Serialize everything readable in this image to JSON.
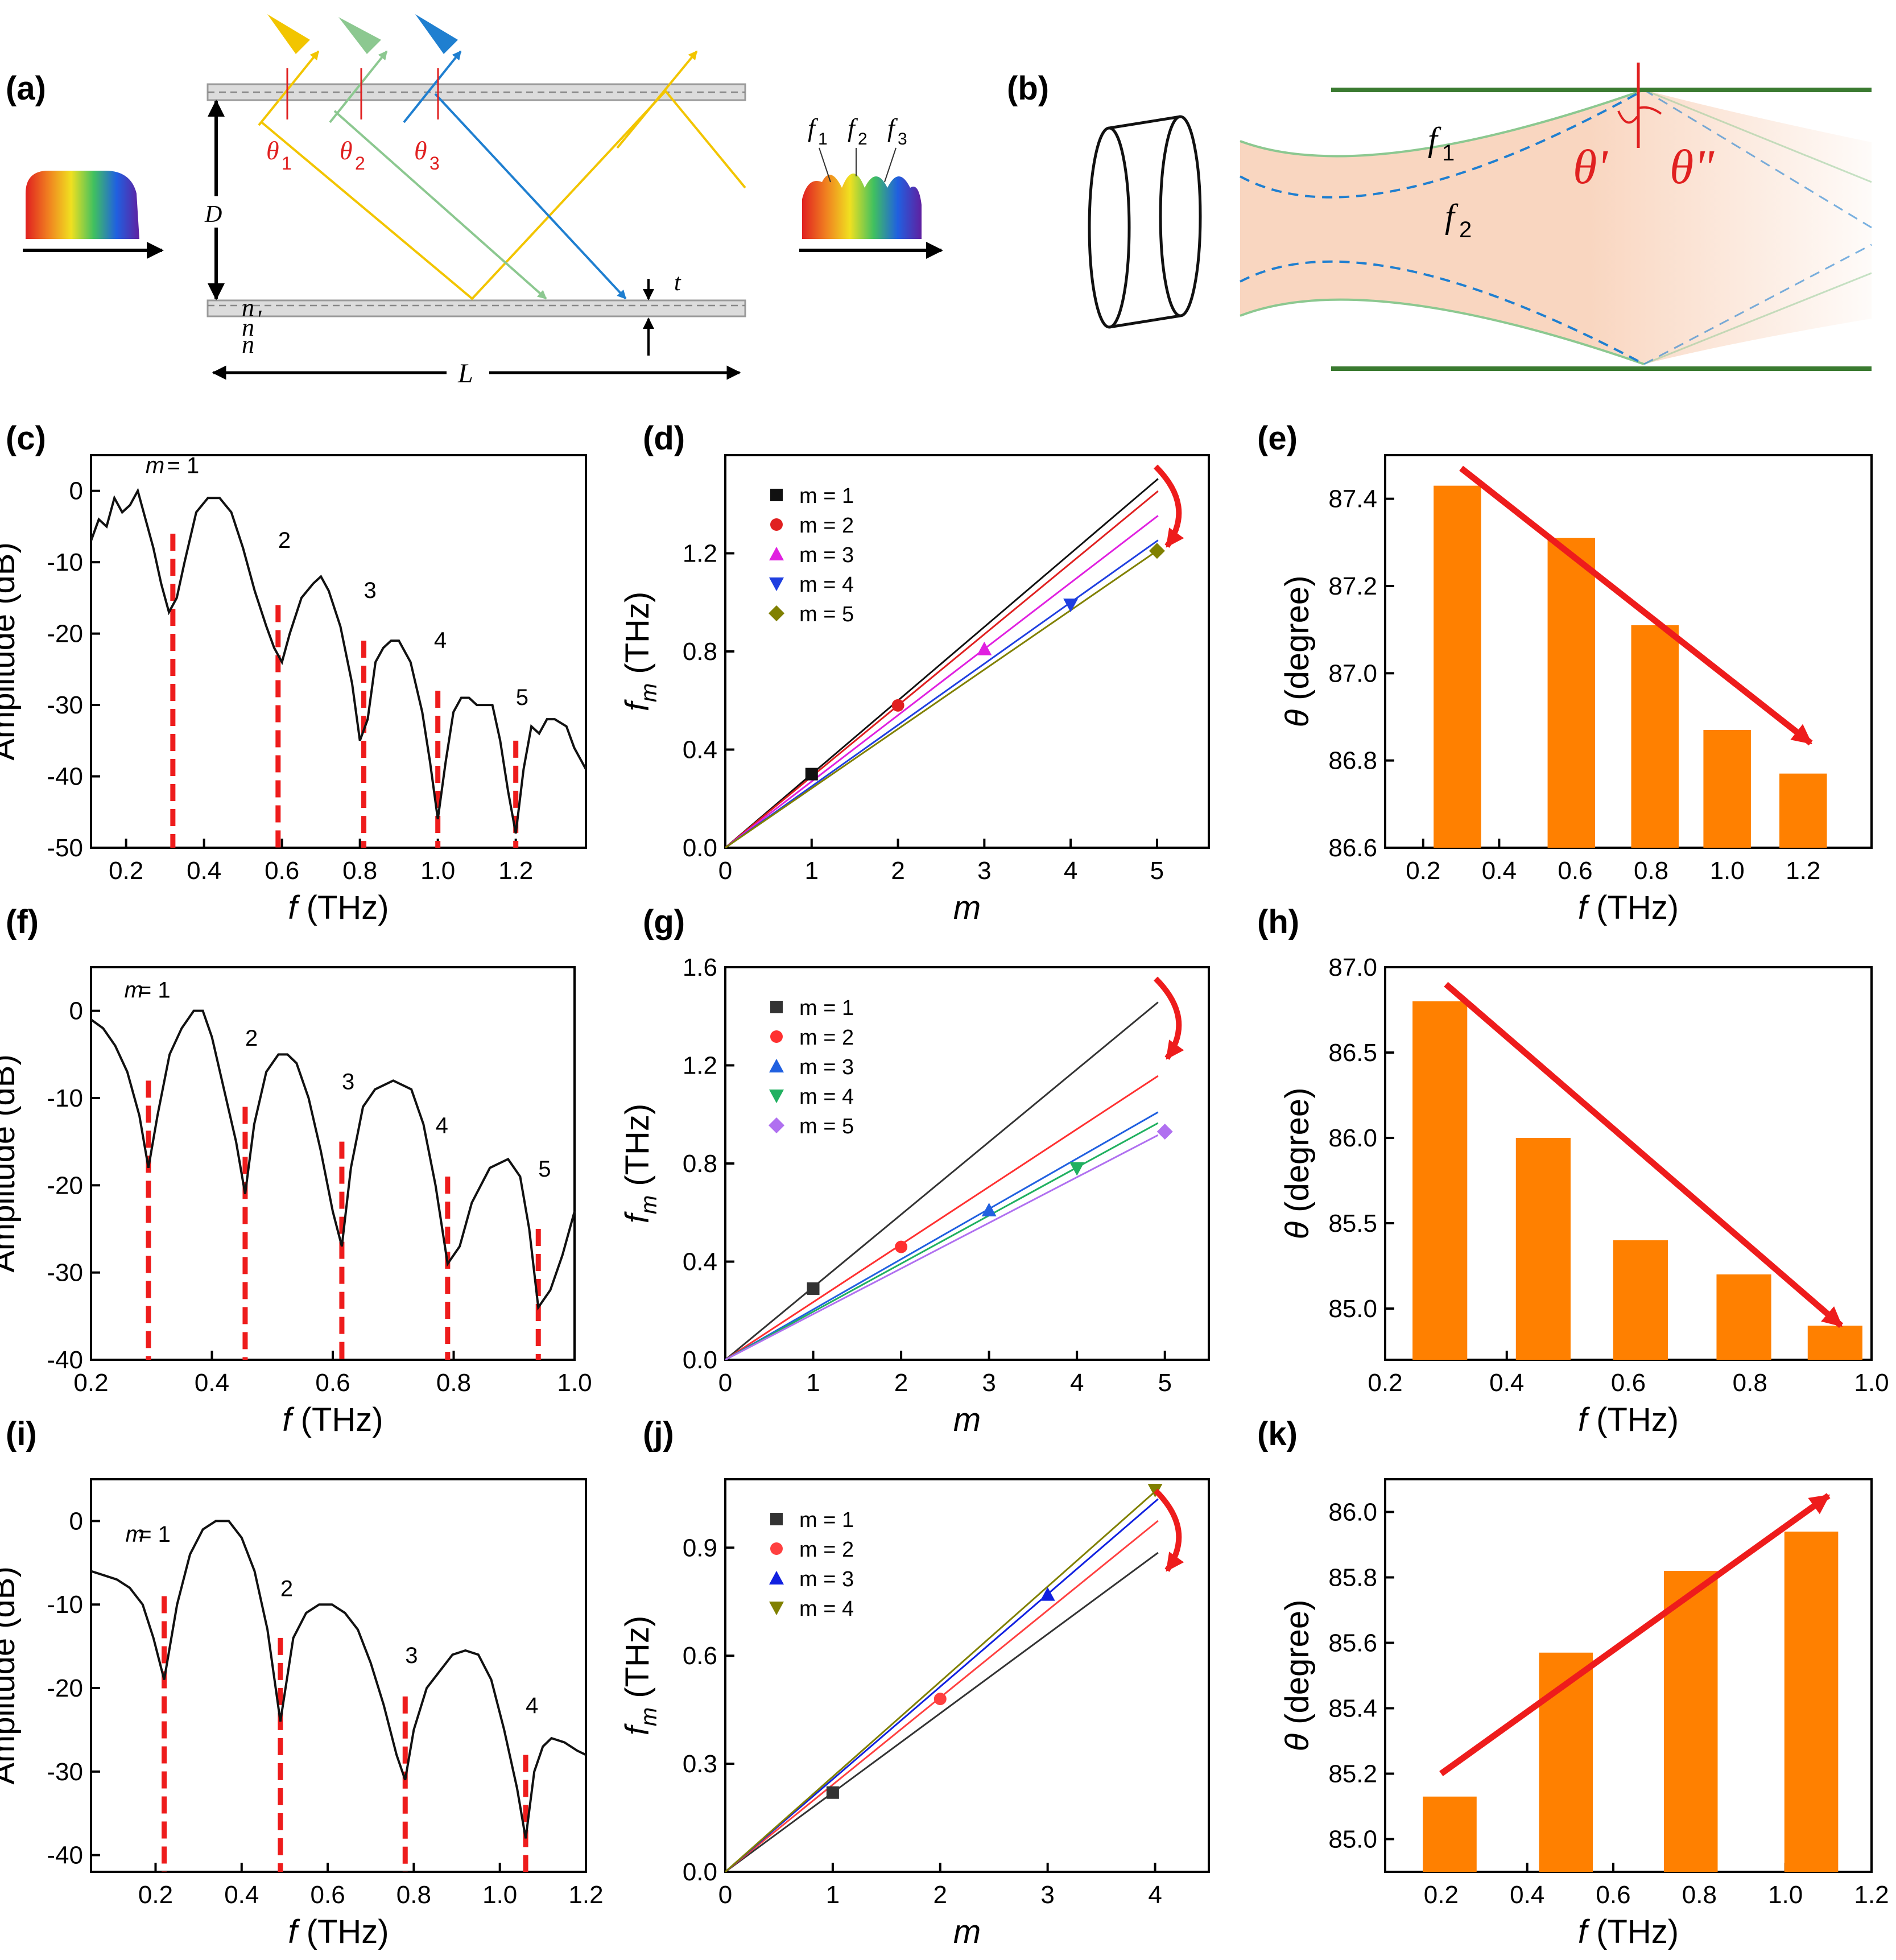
{
  "panels": {
    "a": {
      "label": "(a)",
      "symbols": [
        "D",
        "L",
        "t",
        "n",
        "n",
        "n",
        "'"
      ],
      "angles": [
        "θ",
        "1",
        "θ",
        "2",
        "θ",
        "3"
      ],
      "freqs": [
        "f",
        "1",
        "f",
        "2",
        "f",
        "3"
      ],
      "colors": {
        "yellow": "#f2c500",
        "green": "#8cc890",
        "blue": "#1f7fd0",
        "red": "#e02020"
      }
    },
    "b": {
      "label": "(b)",
      "f1": "f",
      "f1sub": "1",
      "f2": "f",
      "f2sub": "2",
      "theta1": "θ'",
      "theta2": "θ\""
    }
  },
  "chart_data": [
    {
      "id": "c",
      "label": "(c)",
      "type": "line",
      "xlabel_italic": "f",
      "xlabel_rest": " (THz)",
      "ylabel": "Amplitude (dB)",
      "xlim": [
        0.11,
        1.38
      ],
      "ylim": [
        -50,
        5
      ],
      "xticks": [
        0.2,
        0.4,
        0.6,
        0.8,
        1.0,
        1.2
      ],
      "xtick_labels": [
        "0.2",
        "0.4",
        "0.6",
        "0.8",
        "1.0",
        "1.2"
      ],
      "yticks": [
        0,
        -10,
        -20,
        -30,
        -40,
        -50
      ],
      "ytick_labels": [
        "0",
        "-10",
        "-20",
        "-30",
        "-40",
        "-50"
      ],
      "x": [
        0.11,
        0.13,
        0.15,
        0.17,
        0.19,
        0.21,
        0.23,
        0.25,
        0.27,
        0.29,
        0.31,
        0.33,
        0.35,
        0.38,
        0.41,
        0.44,
        0.47,
        0.5,
        0.53,
        0.56,
        0.58,
        0.6,
        0.62,
        0.65,
        0.68,
        0.7,
        0.72,
        0.75,
        0.78,
        0.8,
        0.82,
        0.84,
        0.86,
        0.88,
        0.9,
        0.93,
        0.96,
        0.98,
        1.0,
        1.02,
        1.04,
        1.06,
        1.08,
        1.1,
        1.12,
        1.14,
        1.16,
        1.18,
        1.2,
        1.22,
        1.24,
        1.26,
        1.28,
        1.3,
        1.33,
        1.35,
        1.38
      ],
      "y": [
        -7,
        -4,
        -5,
        -1,
        -3,
        -2,
        0,
        -4,
        -8,
        -13,
        -17,
        -15,
        -10,
        -3,
        -1,
        -1,
        -3,
        -8,
        -14,
        -19,
        -22,
        -24,
        -20,
        -15,
        -13,
        -12,
        -14,
        -19,
        -27,
        -35,
        -32,
        -24,
        -22,
        -21,
        -21,
        -24,
        -31,
        -38,
        -46,
        -38,
        -31,
        -29,
        -29,
        -30,
        -30,
        -30,
        -35,
        -42,
        -48,
        -39,
        -33,
        -34,
        -32,
        -32,
        -33,
        -36,
        -39
      ],
      "dips": [
        0.32,
        0.59,
        0.81,
        1.0,
        1.2
      ],
      "dip_tops": [
        -6,
        -16,
        -21,
        -28,
        -35
      ],
      "annotations": [
        {
          "text": "m",
          "italic": true,
          "x": 0.25,
          "y": 2.5
        },
        {
          "text": " = 1",
          "italic": false,
          "x": 0.305,
          "y": 2.5
        },
        {
          "text": "2",
          "x": 0.59,
          "y": -8
        },
        {
          "text": "3",
          "x": 0.81,
          "y": -15
        },
        {
          "text": "4",
          "x": 0.99,
          "y": -22
        },
        {
          "text": "5",
          "x": 1.2,
          "y": -30
        }
      ]
    },
    {
      "id": "d",
      "label": "(d)",
      "type": "scatter",
      "xlabel_italic": "m",
      "xlabel_rest": "",
      "ylabel_italic": "f",
      "ylabel_sub": "m",
      "ylabel_rest": " (THz)",
      "xlim": [
        0,
        5.6
      ],
      "ylim": [
        0,
        1.6
      ],
      "xticks": [
        0,
        1,
        2,
        3,
        4,
        5
      ],
      "xtick_labels": [
        "0",
        "1",
        "2",
        "3",
        "4",
        "5"
      ],
      "yticks": [
        0,
        0.4,
        0.8,
        1.2
      ],
      "ytick_labels": [
        "0.0",
        "0.4",
        "0.8",
        "1.2"
      ],
      "series": [
        {
          "name": "m = 1",
          "marker": "square",
          "color": "#111111",
          "x": 1,
          "y": 0.3,
          "slope": 0.3
        },
        {
          "name": "m = 2",
          "marker": "circle",
          "color": "#e02020",
          "x": 2,
          "y": 0.58,
          "slope": 0.29
        },
        {
          "name": "m = 3",
          "marker": "triangle",
          "color": "#e020e0",
          "x": 3,
          "y": 0.81,
          "slope": 0.27
        },
        {
          "name": "m = 4",
          "marker": "triangle-down",
          "color": "#1f3fe0",
          "x": 4,
          "y": 0.99,
          "slope": 0.25
        },
        {
          "name": "m = 5",
          "marker": "diamond",
          "color": "#808000",
          "x": 5,
          "y": 1.21,
          "slope": 0.242
        }
      ]
    },
    {
      "id": "e",
      "label": "(e)",
      "type": "bar",
      "xlabel_italic": "f",
      "xlabel_rest": " (THz)",
      "ylabel_italic": "θ",
      "ylabel_rest": " (degree)",
      "xlim": [
        0.1,
        1.38
      ],
      "ylim": [
        86.6,
        87.5
      ],
      "xticks": [
        0.2,
        0.4,
        0.6,
        0.8,
        1.0,
        1.2
      ],
      "xtick_labels": [
        "0.2",
        "0.4",
        "0.6",
        "0.8",
        "1.0",
        "1.2"
      ],
      "yticks": [
        86.6,
        86.8,
        87.0,
        87.2,
        87.4
      ],
      "ytick_labels": [
        "86.6",
        "86.8",
        "87.0",
        "87.2",
        "87.4"
      ],
      "x": [
        0.29,
        0.59,
        0.81,
        1.0,
        1.2
      ],
      "values": [
        87.43,
        87.31,
        87.11,
        86.87,
        86.77
      ],
      "bar_width": 0.125,
      "bar_color": "#ff8000",
      "arrow": {
        "from": [
          0.3,
          87.47
        ],
        "to": [
          1.22,
          86.84
        ]
      }
    },
    {
      "id": "f",
      "label": "(f)",
      "type": "line",
      "xlabel_italic": "f",
      "xlabel_rest": " (THz)",
      "ylabel": "Amplitude (dB)",
      "xlim": [
        0.2,
        1.0
      ],
      "ylim": [
        -40,
        5
      ],
      "xticks": [
        0.2,
        0.4,
        0.6,
        0.8,
        1.0
      ],
      "xtick_labels": [
        "0.2",
        "0.4",
        "0.6",
        "0.8",
        "1.0"
      ],
      "yticks": [
        0,
        -10,
        -20,
        -30,
        -40
      ],
      "ytick_labels": [
        "0",
        "-10",
        "-20",
        "-30",
        "-40"
      ],
      "x": [
        0.2,
        0.22,
        0.24,
        0.26,
        0.28,
        0.295,
        0.31,
        0.33,
        0.35,
        0.37,
        0.385,
        0.4,
        0.42,
        0.44,
        0.455,
        0.47,
        0.49,
        0.51,
        0.525,
        0.54,
        0.56,
        0.58,
        0.6,
        0.615,
        0.63,
        0.65,
        0.67,
        0.7,
        0.73,
        0.75,
        0.77,
        0.79,
        0.81,
        0.83,
        0.86,
        0.89,
        0.91,
        0.925,
        0.94,
        0.96,
        0.98,
        1.0
      ],
      "y": [
        -1,
        -2,
        -4,
        -7,
        -12,
        -18,
        -12,
        -5,
        -2,
        0,
        0,
        -3,
        -9,
        -15,
        -21,
        -13,
        -7,
        -5,
        -5,
        -6,
        -10,
        -16,
        -23,
        -27,
        -18,
        -11,
        -9,
        -8,
        -9,
        -13,
        -20,
        -29,
        -27,
        -22,
        -18,
        -17,
        -19,
        -25,
        -34,
        -32,
        -28,
        -23
      ],
      "dips": [
        0.295,
        0.455,
        0.615,
        0.79,
        0.94
      ],
      "dip_tops": [
        -8,
        -11,
        -15,
        -19,
        -25
      ],
      "annotations": [
        {
          "text": "m",
          "italic": true,
          "x": 0.255,
          "y": 1.5
        },
        {
          "text": " = 1",
          "italic": false,
          "x": 0.278,
          "y": 1.5
        },
        {
          "text": "2",
          "x": 0.455,
          "y": -4
        },
        {
          "text": "3",
          "x": 0.615,
          "y": -9
        },
        {
          "text": "4",
          "x": 0.77,
          "y": -14
        },
        {
          "text": "5",
          "x": 0.94,
          "y": -19
        }
      ]
    },
    {
      "id": "g",
      "label": "(g)",
      "type": "scatter",
      "xlabel_italic": "m",
      "xlabel_rest": "",
      "ylabel_italic": "f",
      "ylabel_sub": "m",
      "ylabel_rest": " (THz)",
      "xlim": [
        0,
        5.5
      ],
      "ylim": [
        0,
        1.6
      ],
      "xticks": [
        0,
        1,
        2,
        3,
        4,
        5
      ],
      "xtick_labels": [
        "0",
        "1",
        "2",
        "3",
        "4",
        "5"
      ],
      "yticks": [
        0,
        0.4,
        0.8,
        1.2,
        1.6
      ],
      "ytick_labels": [
        "0.0",
        "0.4",
        "0.8",
        "1.2",
        "1.6"
      ],
      "series": [
        {
          "name": "m = 1",
          "marker": "square",
          "color": "#333333",
          "x": 1,
          "y": 0.29,
          "slope": 0.296
        },
        {
          "name": "m = 2",
          "marker": "circle",
          "color": "#ff3030",
          "x": 2,
          "y": 0.46,
          "slope": 0.235
        },
        {
          "name": "m = 3",
          "marker": "triangle",
          "color": "#2060e0",
          "x": 3,
          "y": 0.61,
          "slope": 0.205
        },
        {
          "name": "m = 4",
          "marker": "triangle-down",
          "color": "#20b060",
          "x": 4,
          "y": 0.78,
          "slope": 0.196
        },
        {
          "name": "m = 5",
          "marker": "diamond",
          "color": "#b070f0",
          "x": 5,
          "y": 0.93,
          "slope": 0.186
        }
      ]
    },
    {
      "id": "h",
      "label": "(h)",
      "type": "bar",
      "xlabel_italic": "f",
      "xlabel_rest": " (THz)",
      "ylabel_italic": "θ",
      "ylabel_rest": " (degree)",
      "xlim": [
        0.2,
        1.0
      ],
      "ylim": [
        84.7,
        87.0
      ],
      "xticks": [
        0.2,
        0.4,
        0.6,
        0.8,
        1.0
      ],
      "xtick_labels": [
        "0.2",
        "0.4",
        "0.6",
        "0.8",
        "1.0"
      ],
      "yticks": [
        85.0,
        85.5,
        86.0,
        86.5,
        87.0
      ],
      "ytick_labels": [
        "85.0",
        "85.5",
        "86.0",
        "86.5",
        "87.0"
      ],
      "x": [
        0.29,
        0.46,
        0.62,
        0.79,
        0.94
      ],
      "values": [
        86.8,
        86.0,
        85.4,
        85.2,
        84.9
      ],
      "bar_width": 0.09,
      "bar_color": "#ff8000",
      "arrow": {
        "from": [
          0.3,
          86.9
        ],
        "to": [
          0.95,
          84.9
        ]
      }
    },
    {
      "id": "i",
      "label": "(i)",
      "type": "line",
      "xlabel_italic": "f",
      "xlabel_rest": " (THz)",
      "ylabel": "Amplitude (dB)",
      "xlim": [
        0.05,
        1.2
      ],
      "ylim": [
        -42,
        5
      ],
      "xticks": [
        0.2,
        0.4,
        0.6,
        0.8,
        1.0,
        1.2
      ],
      "xtick_labels": [
        "0.2",
        "0.4",
        "0.6",
        "0.8",
        "1.0",
        "1.2"
      ],
      "yticks": [
        0,
        -10,
        -20,
        -30,
        -40
      ],
      "ytick_labels": [
        "0",
        "-10",
        "-20",
        "-30",
        "-40"
      ],
      "x": [
        0.05,
        0.08,
        0.11,
        0.14,
        0.17,
        0.195,
        0.22,
        0.25,
        0.28,
        0.31,
        0.34,
        0.37,
        0.4,
        0.43,
        0.46,
        0.49,
        0.52,
        0.55,
        0.58,
        0.61,
        0.64,
        0.67,
        0.7,
        0.73,
        0.76,
        0.78,
        0.8,
        0.83,
        0.86,
        0.89,
        0.92,
        0.95,
        0.98,
        1.01,
        1.04,
        1.06,
        1.08,
        1.1,
        1.12,
        1.15,
        1.18,
        1.2
      ],
      "y": [
        -6,
        -6.5,
        -7,
        -8,
        -10,
        -14,
        -19,
        -10,
        -4,
        -1,
        0,
        0,
        -2,
        -6,
        -13,
        -24,
        -14,
        -11,
        -10,
        -10,
        -11,
        -13,
        -17,
        -22,
        -28,
        -31,
        -25,
        -20,
        -18,
        -16,
        -15.5,
        -16,
        -19,
        -25,
        -32,
        -38,
        -30,
        -27,
        -26,
        -26.5,
        -27.5,
        -28
      ],
      "dips": [
        0.22,
        0.49,
        0.78,
        1.06
      ],
      "dip_tops": [
        -9,
        -14,
        -21,
        -28
      ],
      "annotations": [
        {
          "text": "m",
          "italic": true,
          "x": 0.13,
          "y": -2.5
        },
        {
          "text": " = 1",
          "italic": false,
          "x": 0.16,
          "y": -2.5
        },
        {
          "text": "2",
          "x": 0.49,
          "y": -9
        },
        {
          "text": "3",
          "x": 0.78,
          "y": -17
        },
        {
          "text": "4",
          "x": 1.06,
          "y": -23
        }
      ]
    },
    {
      "id": "j",
      "label": "(j)",
      "type": "scatter",
      "xlabel_italic": "m",
      "xlabel_rest": "",
      "ylabel_italic": "f",
      "ylabel_sub": "m",
      "ylabel_rest": " (THz)",
      "xlim": [
        0,
        4.5
      ],
      "ylim": [
        0,
        1.09
      ],
      "xticks": [
        0,
        1,
        2,
        3,
        4
      ],
      "xtick_labels": [
        "0",
        "1",
        "2",
        "3",
        "4"
      ],
      "yticks": [
        0,
        0.3,
        0.6,
        0.9
      ],
      "ytick_labels": [
        "0.0",
        "0.3",
        "0.6",
        "0.9"
      ],
      "series": [
        {
          "name": "m = 1",
          "marker": "square",
          "color": "#333333",
          "x": 1,
          "y": 0.22,
          "slope": 0.22
        },
        {
          "name": "m = 2",
          "marker": "circle",
          "color": "#ff4040",
          "x": 2,
          "y": 0.48,
          "slope": 0.242
        },
        {
          "name": "m = 3",
          "marker": "triangle",
          "color": "#1020e0",
          "x": 3,
          "y": 0.77,
          "slope": 0.257
        },
        {
          "name": "m = 4",
          "marker": "triangle-down",
          "color": "#808000",
          "x": 4,
          "y": 1.06,
          "slope": 0.264
        }
      ]
    },
    {
      "id": "k",
      "label": "(k)",
      "type": "bar",
      "xlabel_italic": "f",
      "xlabel_rest": " (THz)",
      "ylabel_italic": "θ",
      "ylabel_rest": " (degree)",
      "xlim": [
        0.07,
        1.2
      ],
      "ylim": [
        84.9,
        86.1
      ],
      "xticks": [
        0.2,
        0.4,
        0.6,
        0.8,
        1.0,
        1.2
      ],
      "xtick_labels": [
        "0.2",
        "0.4",
        "0.6",
        "0.8",
        "1.0",
        "1.2"
      ],
      "yticks": [
        85.0,
        85.2,
        85.4,
        85.6,
        85.8,
        86.0
      ],
      "ytick_labels": [
        "85.0",
        "85.2",
        "85.4",
        "85.6",
        "85.8",
        "86.0"
      ],
      "x": [
        0.22,
        0.49,
        0.78,
        1.06
      ],
      "values": [
        85.13,
        85.57,
        85.82,
        85.94
      ],
      "bar_width": 0.125,
      "bar_color": "#ff8000",
      "arrow": {
        "from": [
          0.2,
          85.2
        ],
        "to": [
          1.1,
          86.05
        ]
      }
    }
  ]
}
